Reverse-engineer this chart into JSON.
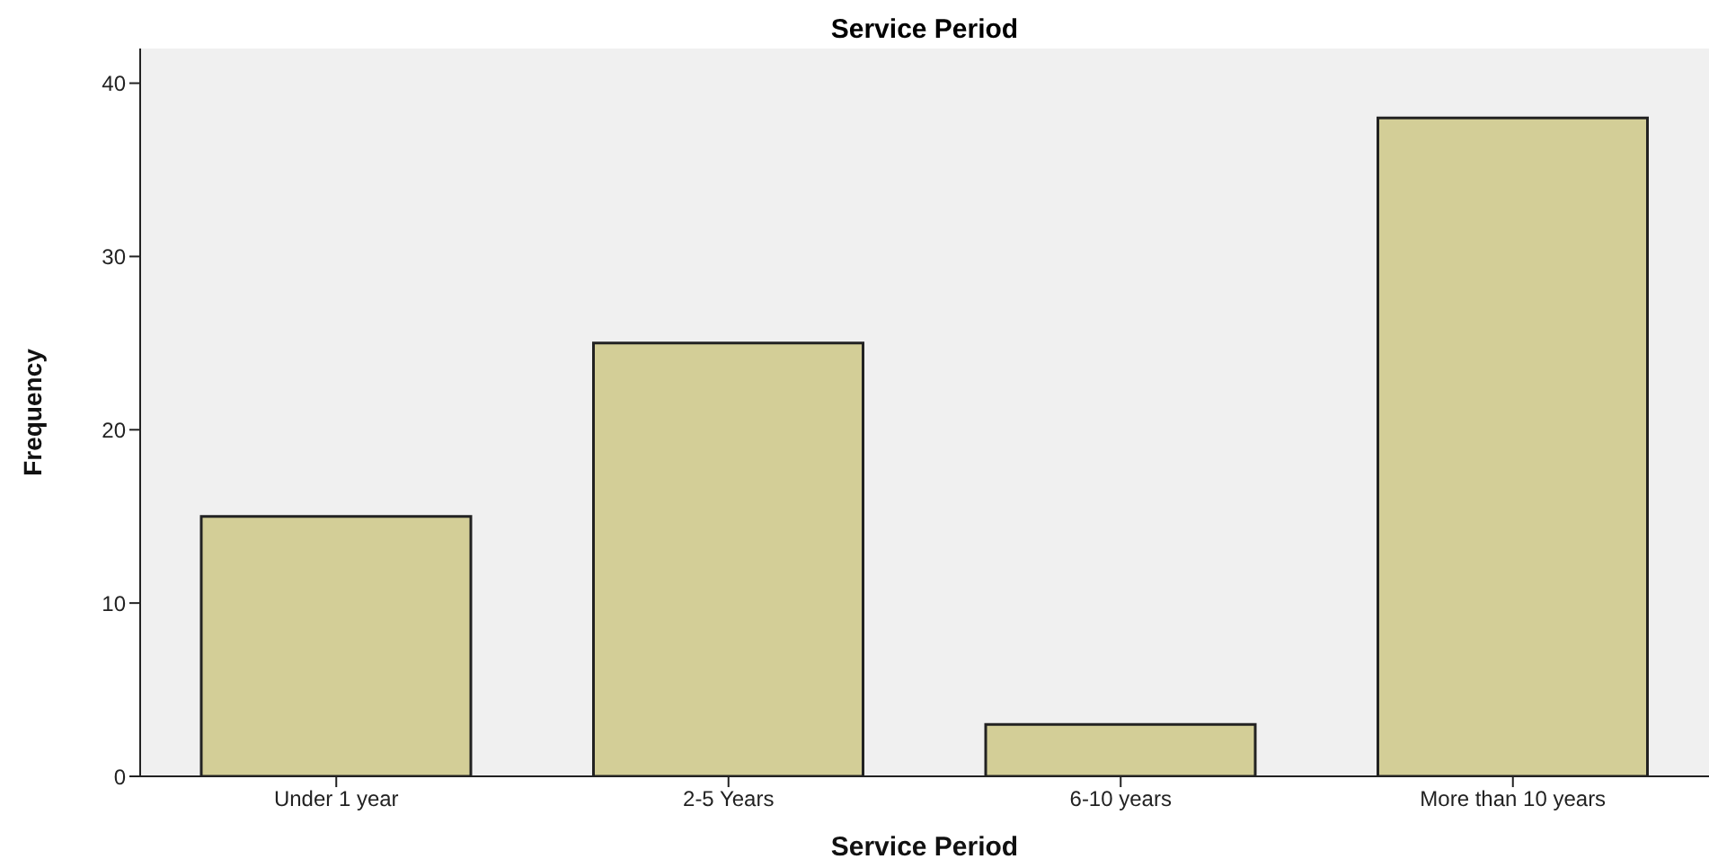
{
  "chart_data": {
    "type": "bar",
    "title": "Service Period",
    "xlabel": "Service Period",
    "ylabel": "Frequency",
    "categories": [
      "Under 1 year",
      "2-5 Years",
      "6-10 years",
      "More than 10 years"
    ],
    "values": [
      15,
      25,
      3,
      38
    ],
    "color": "#d3ce97",
    "ylim": [
      0,
      42
    ],
    "yticks": [
      0,
      10,
      20,
      30,
      40
    ],
    "grid": false
  }
}
